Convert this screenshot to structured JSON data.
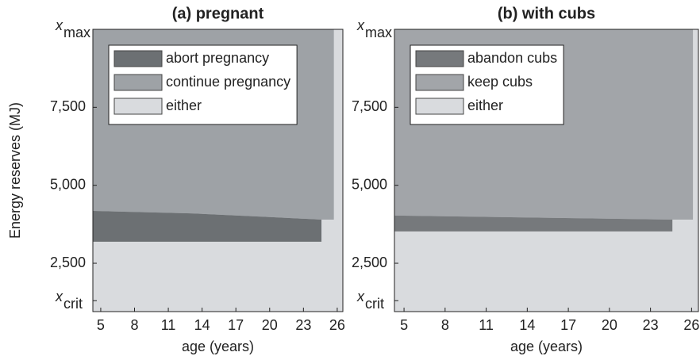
{
  "chart_data": [
    {
      "type": "region",
      "title": "(a) pregnant",
      "xlabel": "age (years)",
      "ylabel": "Energy reserves (MJ)",
      "xlim": [
        4.3,
        26.5
      ],
      "ylim": [
        950,
        10000
      ],
      "xticks": [
        5,
        8,
        11,
        14,
        17,
        20,
        23,
        26
      ],
      "yticks": [
        {
          "value": 1300,
          "label": "x",
          "subscript": "crit"
        },
        {
          "value": 2500,
          "label": "2,500"
        },
        {
          "value": 5000,
          "label": "5,000"
        },
        {
          "value": 7500,
          "label": "7,500"
        },
        {
          "value": 10000,
          "label": "x",
          "subscript": "max"
        }
      ],
      "series": [
        {
          "name": "either",
          "color": "#d9dbde",
          "x": [
            4.3,
            26.5
          ],
          "lower": [
            950,
            950
          ],
          "upper": [
            10000,
            10000
          ]
        },
        {
          "name": "continue pregnancy",
          "color": "#9ea2a6",
          "x": [
            4.3,
            13,
            20,
            24.6,
            24.6,
            25.7
          ],
          "lower": [
            4180,
            4100,
            3980,
            3900,
            3900,
            3900
          ],
          "upper": [
            10000,
            10000,
            10000,
            10000,
            10000,
            10000
          ]
        },
        {
          "name": "abort pregnancy",
          "color": "#6c7073",
          "x": [
            4.3,
            13,
            20,
            24.6
          ],
          "lower": [
            3190,
            3190,
            3190,
            3190
          ],
          "upper": [
            4180,
            4100,
            3980,
            3900
          ]
        }
      ],
      "legend_order": [
        2,
        1,
        0
      ]
    },
    {
      "type": "region",
      "title": "(b) with cubs",
      "xlabel": "age (years)",
      "xlim": [
        4.3,
        26.5
      ],
      "ylim": [
        950,
        10000
      ],
      "xticks": [
        5,
        8,
        11,
        14,
        17,
        20,
        23,
        26
      ],
      "yticks": [
        {
          "value": 1300,
          "label": "x",
          "subscript": "crit"
        },
        {
          "value": 2500,
          "label": "2,500"
        },
        {
          "value": 5000,
          "label": "5,000"
        },
        {
          "value": 7500,
          "label": "7,500"
        },
        {
          "value": 10000,
          "label": "x",
          "subscript": "max"
        }
      ],
      "series": [
        {
          "name": "either",
          "color": "#d9dbde",
          "x": [
            4.3,
            26.5
          ],
          "lower": [
            950,
            950
          ],
          "upper": [
            10000,
            10000
          ]
        },
        {
          "name": "keep cubs",
          "color": "#a2a5a9",
          "x": [
            4.3,
            24.6,
            24.6,
            26.1
          ],
          "lower": [
            4030,
            3900,
            3900,
            3900
          ],
          "upper": [
            10000,
            10000,
            10000,
            10000
          ]
        },
        {
          "name": "abandon cubs",
          "color": "#76797c",
          "x": [
            4.3,
            24.6
          ],
          "lower": [
            3520,
            3520
          ],
          "upper": [
            4030,
            3900
          ]
        }
      ],
      "legend_order": [
        2,
        1,
        0
      ]
    }
  ]
}
